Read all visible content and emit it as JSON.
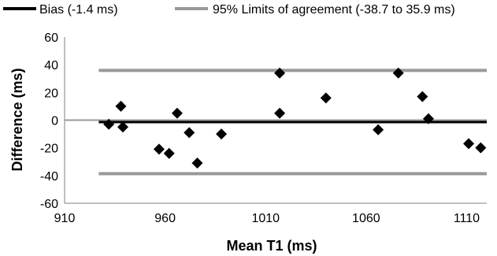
{
  "chart_data": {
    "type": "scatter",
    "title": "",
    "xlabel": "Mean T1 (ms)",
    "ylabel": "Difference (ms)",
    "xlim": [
      910,
      1120
    ],
    "ylim": [
      -60,
      60
    ],
    "x_ticks": [
      910,
      960,
      1010,
      1060,
      1110
    ],
    "y_ticks": [
      -60,
      -40,
      -20,
      0,
      20,
      40,
      60
    ],
    "grid": false,
    "legend_position": "top",
    "reference_lines": [
      {
        "name": "Bias (-1.4 ms)",
        "y": -1.4,
        "color": "#000000"
      },
      {
        "name": "95% Limits of agreement (-38.7 to 35.9 ms)",
        "y_values": [
          -38.7,
          35.9
        ],
        "color": "#999999"
      }
    ],
    "zero_line": {
      "y": 0,
      "color": "#999999"
    },
    "series": [
      {
        "marker": "diamond",
        "color": "#000000",
        "points": [
          {
            "x": 932,
            "y": -3
          },
          {
            "x": 938,
            "y": 10
          },
          {
            "x": 939,
            "y": -5
          },
          {
            "x": 957,
            "y": -21
          },
          {
            "x": 962,
            "y": -24
          },
          {
            "x": 966,
            "y": 5
          },
          {
            "x": 972,
            "y": -9
          },
          {
            "x": 976,
            "y": -31
          },
          {
            "x": 988,
            "y": -10
          },
          {
            "x": 1017,
            "y": 34
          },
          {
            "x": 1017,
            "y": 5
          },
          {
            "x": 1040,
            "y": 16
          },
          {
            "x": 1066,
            "y": -7
          },
          {
            "x": 1076,
            "y": 34
          },
          {
            "x": 1088,
            "y": 17
          },
          {
            "x": 1091,
            "y": 1
          },
          {
            "x": 1111,
            "y": -17
          },
          {
            "x": 1117,
            "y": -20
          }
        ]
      }
    ]
  }
}
